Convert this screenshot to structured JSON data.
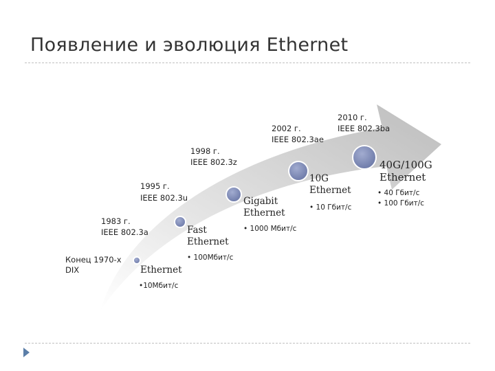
{
  "slide": {
    "title": "Появление и эволюция Ethernet"
  },
  "milestones": [
    {
      "year": "Конец 1970-х",
      "standard": "DIX",
      "technology": "Ethernet",
      "speeds": [
        "•10Мбит/с"
      ]
    },
    {
      "year": "1983 г.",
      "standard": "IEEE 802.3a"
    },
    {
      "year": "1995 г.",
      "standard": "IEEE 802.3u",
      "technology": "Fast Ethernet",
      "speeds": [
        "• 100Мбит/с"
      ]
    },
    {
      "year": "1998 г.",
      "standard": "IEEE 802.3z",
      "technology": "Gigabit Ethernet",
      "speeds": [
        "• 1000 Мбит/с"
      ]
    },
    {
      "year": "2002 г.",
      "standard": "IEEE 802.3ae",
      "technology": "10G Ethernet",
      "speeds": [
        "• 10 Гбит/с"
      ]
    },
    {
      "year": "2010 г.",
      "standard": "IEEE 802.3ba",
      "technology": "40G/100G Ethernet",
      "speeds": [
        "• 40 Гбит/с",
        "• 100 Гбит/с"
      ]
    }
  ],
  "colors": {
    "arrow_light": "#f2f2f2",
    "arrow_dark": "#c8c8c8",
    "node_fill": "#7a87b3",
    "node_stroke": "#ffffff",
    "accent": "#5b7ea8"
  },
  "icons": {
    "navigation": "triangle-right-icon"
  }
}
